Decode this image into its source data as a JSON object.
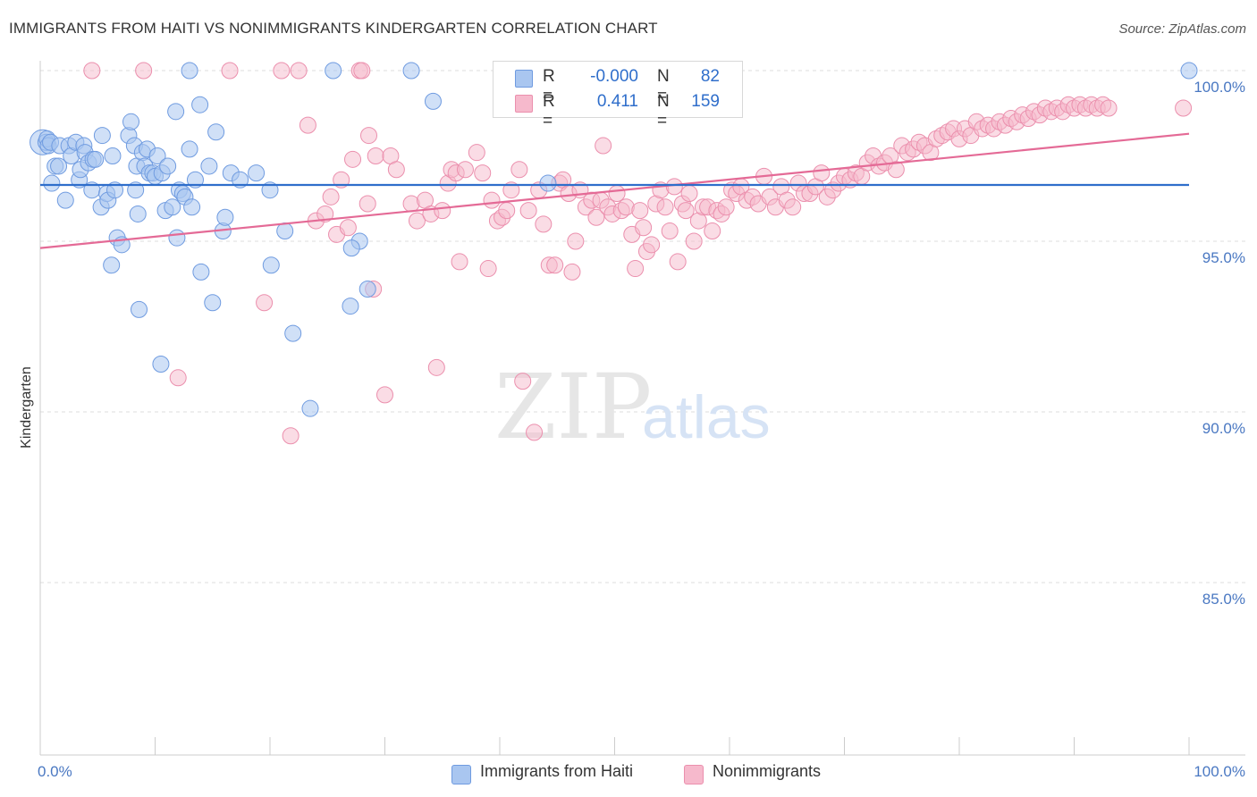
{
  "title": "IMMIGRANTS FROM HAITI VS NONIMMIGRANTS KINDERGARTEN CORRELATION CHART",
  "source": "Source: ZipAtlas.com",
  "watermark": {
    "zip": "ZIP",
    "atlas": "atlas"
  },
  "legend": {
    "series1": {
      "r_label": "R =",
      "r_value": "-0.000",
      "n_label": "N =",
      "n_value": "82"
    },
    "series2": {
      "r_label": "R =",
      "r_value": "0.411",
      "n_label": "N =",
      "n_value": "159"
    }
  },
  "bottom_legend": {
    "series1": "Immigrants from Haiti",
    "series2": "Nonimmigrants"
  },
  "colors": {
    "blue_fill": "#a9c6f0",
    "blue_stroke": "#6f9be0",
    "blue_line": "#2f6ecb",
    "pink_fill": "#f6b9cc",
    "pink_stroke": "#eb8fad",
    "pink_line": "#e46a96",
    "tick_text": "#4a78c2"
  },
  "chart_data": {
    "type": "scatter",
    "title": "IMMIGRANTS FROM HAITI VS NONIMMIGRANTS KINDERGARTEN CORRELATION CHART",
    "xlabel": "",
    "ylabel": "Kindergarten",
    "xlim": [
      0,
      100
    ],
    "ylim": [
      80.5,
      100.7
    ],
    "x_tick_labels": [
      "0.0%",
      "100.0%"
    ],
    "y_ticks": [
      85,
      90,
      95,
      100
    ],
    "y_tick_labels": [
      "85.0%",
      "90.0%",
      "95.0%",
      "100.0%"
    ],
    "grid": "horizontal dashed",
    "legend_position": "top-center",
    "series": [
      {
        "name": "Immigrants from Haiti",
        "r": -0.0,
        "n": 82,
        "trend": {
          "x": [
            0,
            100
          ],
          "y": [
            96.65,
            96.65
          ]
        },
        "points": [
          [
            0.2,
            97.9
          ],
          [
            0.5,
            97.9
          ],
          [
            0.6,
            98.0
          ],
          [
            0.7,
            97.8
          ],
          [
            0.9,
            97.9
          ],
          [
            1.0,
            96.7
          ],
          [
            1.3,
            97.2
          ],
          [
            1.6,
            97.2
          ],
          [
            1.7,
            97.8
          ],
          [
            2.2,
            96.2
          ],
          [
            2.5,
            97.8
          ],
          [
            2.7,
            97.5
          ],
          [
            3.1,
            97.9
          ],
          [
            3.4,
            96.8
          ],
          [
            3.5,
            97.1
          ],
          [
            3.8,
            97.8
          ],
          [
            3.9,
            97.6
          ],
          [
            4.2,
            97.3
          ],
          [
            4.5,
            96.5
          ],
          [
            4.6,
            97.4
          ],
          [
            4.8,
            97.4
          ],
          [
            5.3,
            96.0
          ],
          [
            5.4,
            98.1
          ],
          [
            5.8,
            96.4
          ],
          [
            5.9,
            96.2
          ],
          [
            6.3,
            97.5
          ],
          [
            6.5,
            96.5
          ],
          [
            6.7,
            95.1
          ],
          [
            7.1,
            94.9
          ],
          [
            7.7,
            98.1
          ],
          [
            7.9,
            98.5
          ],
          [
            8.2,
            97.8
          ],
          [
            8.3,
            96.5
          ],
          [
            8.4,
            97.2
          ],
          [
            8.5,
            95.8
          ],
          [
            8.9,
            97.6
          ],
          [
            9.1,
            97.2
          ],
          [
            9.3,
            97.7
          ],
          [
            9.5,
            97.0
          ],
          [
            9.8,
            97.0
          ],
          [
            10.0,
            96.9
          ],
          [
            10.2,
            97.5
          ],
          [
            10.6,
            97.0
          ],
          [
            10.9,
            95.9
          ],
          [
            11.1,
            97.2
          ],
          [
            11.5,
            96.0
          ],
          [
            11.8,
            98.8
          ],
          [
            11.9,
            95.1
          ],
          [
            12.1,
            96.5
          ],
          [
            12.4,
            96.4
          ],
          [
            12.6,
            96.3
          ],
          [
            13.0,
            100.0
          ],
          [
            13.2,
            96.0
          ],
          [
            13.0,
            97.7
          ],
          [
            13.5,
            96.8
          ],
          [
            13.9,
            99.0
          ],
          [
            14.0,
            94.1
          ],
          [
            14.7,
            97.2
          ],
          [
            15.0,
            93.2
          ],
          [
            15.3,
            98.2
          ],
          [
            15.9,
            95.3
          ],
          [
            16.1,
            95.7
          ],
          [
            16.6,
            97.0
          ],
          [
            17.4,
            96.8
          ],
          [
            18.8,
            97.0
          ],
          [
            20.0,
            96.5
          ],
          [
            20.1,
            94.3
          ],
          [
            21.3,
            95.3
          ],
          [
            22.0,
            92.3
          ],
          [
            23.5,
            90.1
          ],
          [
            8.6,
            93.0
          ],
          [
            10.5,
            91.4
          ],
          [
            6.2,
            94.3
          ],
          [
            25.5,
            100.0
          ],
          [
            27.0,
            93.1
          ],
          [
            27.8,
            95.0
          ],
          [
            28.5,
            93.6
          ],
          [
            32.3,
            100.0
          ],
          [
            34.2,
            99.1
          ],
          [
            44.2,
            96.7
          ],
          [
            27.1,
            94.8
          ],
          [
            100.0,
            100.0
          ]
        ]
      },
      {
        "name": "Nonimmigrants",
        "r": 0.411,
        "n": 159,
        "trend": {
          "x": [
            0,
            100
          ],
          "y": [
            94.8,
            98.15
          ]
        },
        "points": [
          [
            4.5,
            100.0
          ],
          [
            9.0,
            100.0
          ],
          [
            12.0,
            91.0
          ],
          [
            16.5,
            100.0
          ],
          [
            19.5,
            93.2
          ],
          [
            21.0,
            100.0
          ],
          [
            21.8,
            89.3
          ],
          [
            22.5,
            100.0
          ],
          [
            23.3,
            98.4
          ],
          [
            24.0,
            95.6
          ],
          [
            24.8,
            95.8
          ],
          [
            25.3,
            96.3
          ],
          [
            25.8,
            95.2
          ],
          [
            26.2,
            96.8
          ],
          [
            26.8,
            95.4
          ],
          [
            27.2,
            97.4
          ],
          [
            27.8,
            100.0
          ],
          [
            28.0,
            100.0
          ],
          [
            28.5,
            96.1
          ],
          [
            28.6,
            98.1
          ],
          [
            29.0,
            93.6
          ],
          [
            29.2,
            97.5
          ],
          [
            30.0,
            90.5
          ],
          [
            30.5,
            97.5
          ],
          [
            31.0,
            97.1
          ],
          [
            32.3,
            96.1
          ],
          [
            32.8,
            95.6
          ],
          [
            33.5,
            96.2
          ],
          [
            34.0,
            95.8
          ],
          [
            34.5,
            91.3
          ],
          [
            35.0,
            95.9
          ],
          [
            35.5,
            96.7
          ],
          [
            35.8,
            97.1
          ],
          [
            36.2,
            97.0
          ],
          [
            36.5,
            94.4
          ],
          [
            37.0,
            97.1
          ],
          [
            38.0,
            97.6
          ],
          [
            38.5,
            97.0
          ],
          [
            39.0,
            94.2
          ],
          [
            39.3,
            96.2
          ],
          [
            39.8,
            95.6
          ],
          [
            40.2,
            95.7
          ],
          [
            40.6,
            95.9
          ],
          [
            41.0,
            96.5
          ],
          [
            41.7,
            97.1
          ],
          [
            42.0,
            90.9
          ],
          [
            42.5,
            95.9
          ],
          [
            43.0,
            89.4
          ],
          [
            43.4,
            96.5
          ],
          [
            43.8,
            95.5
          ],
          [
            44.3,
            94.3
          ],
          [
            44.8,
            94.3
          ],
          [
            45.2,
            96.7
          ],
          [
            45.5,
            96.8
          ],
          [
            46.0,
            96.4
          ],
          [
            46.3,
            94.1
          ],
          [
            46.6,
            95.0
          ],
          [
            47.0,
            96.5
          ],
          [
            47.5,
            96.0
          ],
          [
            48.0,
            96.2
          ],
          [
            48.4,
            95.7
          ],
          [
            48.8,
            96.2
          ],
          [
            49.0,
            97.8
          ],
          [
            49.4,
            96.0
          ],
          [
            49.8,
            95.8
          ],
          [
            50.2,
            96.4
          ],
          [
            50.6,
            95.9
          ],
          [
            51.0,
            96.0
          ],
          [
            51.5,
            95.2
          ],
          [
            51.8,
            94.2
          ],
          [
            52.2,
            95.9
          ],
          [
            52.5,
            95.4
          ],
          [
            52.8,
            94.7
          ],
          [
            53.2,
            94.9
          ],
          [
            53.6,
            96.1
          ],
          [
            54.0,
            96.5
          ],
          [
            54.4,
            96.0
          ],
          [
            54.8,
            95.3
          ],
          [
            55.2,
            96.6
          ],
          [
            55.5,
            94.4
          ],
          [
            55.9,
            96.1
          ],
          [
            56.2,
            95.9
          ],
          [
            56.5,
            96.4
          ],
          [
            56.9,
            95.0
          ],
          [
            57.3,
            95.6
          ],
          [
            57.7,
            96.0
          ],
          [
            58.1,
            96.0
          ],
          [
            58.5,
            95.3
          ],
          [
            58.9,
            95.9
          ],
          [
            59.3,
            95.8
          ],
          [
            59.7,
            96.0
          ],
          [
            60.2,
            96.5
          ],
          [
            60.6,
            96.4
          ],
          [
            61.0,
            96.6
          ],
          [
            61.5,
            96.2
          ],
          [
            62.0,
            96.3
          ],
          [
            62.5,
            96.1
          ],
          [
            63.0,
            96.9
          ],
          [
            63.5,
            96.3
          ],
          [
            64.0,
            96.0
          ],
          [
            64.5,
            96.6
          ],
          [
            65.0,
            96.2
          ],
          [
            65.5,
            96.0
          ],
          [
            66.0,
            96.7
          ],
          [
            66.5,
            96.4
          ],
          [
            67.0,
            96.4
          ],
          [
            67.5,
            96.6
          ],
          [
            68.0,
            97.0
          ],
          [
            68.5,
            96.3
          ],
          [
            69.0,
            96.5
          ],
          [
            69.5,
            96.7
          ],
          [
            70.0,
            96.9
          ],
          [
            70.5,
            96.8
          ],
          [
            71.0,
            97.0
          ],
          [
            71.5,
            96.9
          ],
          [
            72.0,
            97.3
          ],
          [
            72.5,
            97.5
          ],
          [
            73.0,
            97.2
          ],
          [
            73.5,
            97.3
          ],
          [
            74.0,
            97.5
          ],
          [
            74.5,
            97.1
          ],
          [
            75.0,
            97.8
          ],
          [
            75.5,
            97.6
          ],
          [
            76.0,
            97.7
          ],
          [
            76.5,
            97.9
          ],
          [
            77.0,
            97.8
          ],
          [
            77.5,
            97.6
          ],
          [
            78.0,
            98.0
          ],
          [
            78.5,
            98.1
          ],
          [
            79.0,
            98.2
          ],
          [
            79.5,
            98.3
          ],
          [
            80.0,
            98.0
          ],
          [
            80.5,
            98.3
          ],
          [
            81.0,
            98.1
          ],
          [
            81.5,
            98.5
          ],
          [
            82.0,
            98.3
          ],
          [
            82.5,
            98.4
          ],
          [
            83.0,
            98.3
          ],
          [
            83.5,
            98.5
          ],
          [
            84.0,
            98.4
          ],
          [
            84.5,
            98.6
          ],
          [
            85.0,
            98.5
          ],
          [
            85.5,
            98.7
          ],
          [
            86.0,
            98.6
          ],
          [
            86.5,
            98.8
          ],
          [
            87.0,
            98.7
          ],
          [
            87.5,
            98.9
          ],
          [
            88.0,
            98.8
          ],
          [
            88.5,
            98.9
          ],
          [
            89.0,
            98.8
          ],
          [
            89.5,
            99.0
          ],
          [
            90.0,
            98.9
          ],
          [
            90.5,
            99.0
          ],
          [
            91.0,
            98.9
          ],
          [
            91.5,
            99.0
          ],
          [
            92.0,
            98.9
          ],
          [
            92.5,
            99.0
          ],
          [
            93.0,
            98.9
          ],
          [
            99.5,
            98.9
          ]
        ]
      }
    ]
  }
}
